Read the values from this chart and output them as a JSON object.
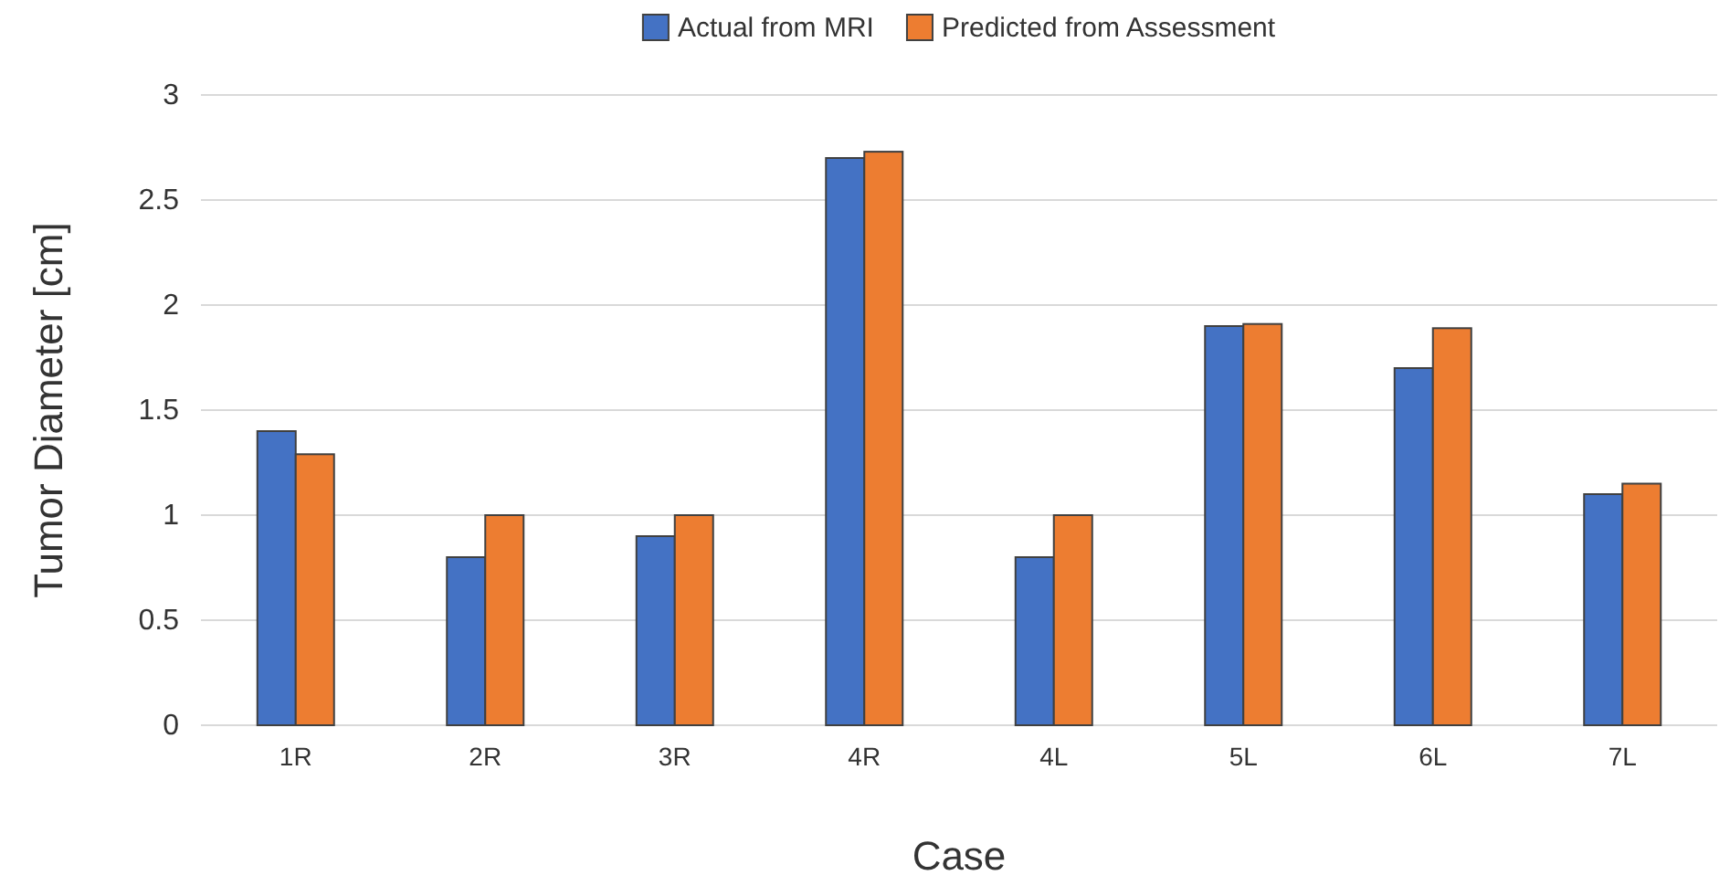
{
  "chart_data": {
    "type": "bar",
    "xlabel": "Case",
    "ylabel": "Tumor Diameter [cm]",
    "categories": [
      "1R",
      "2R",
      "3R",
      "4R",
      "4L",
      "5L",
      "6L",
      "7L"
    ],
    "series": [
      {
        "name": "Actual from MRI",
        "color": "#4472c4",
        "values": [
          1.4,
          0.8,
          0.9,
          2.7,
          0.8,
          1.9,
          1.7,
          1.1
        ]
      },
      {
        "name": "Predicted from Assessment",
        "color": "#ed7d31",
        "values": [
          1.29,
          1.0,
          1.0,
          2.73,
          1.0,
          1.91,
          1.89,
          1.15
        ]
      }
    ],
    "ylim": [
      0,
      3
    ],
    "yticks": [
      0,
      0.5,
      1,
      1.5,
      2,
      2.5,
      3
    ],
    "grid": "y",
    "legend": "top"
  }
}
